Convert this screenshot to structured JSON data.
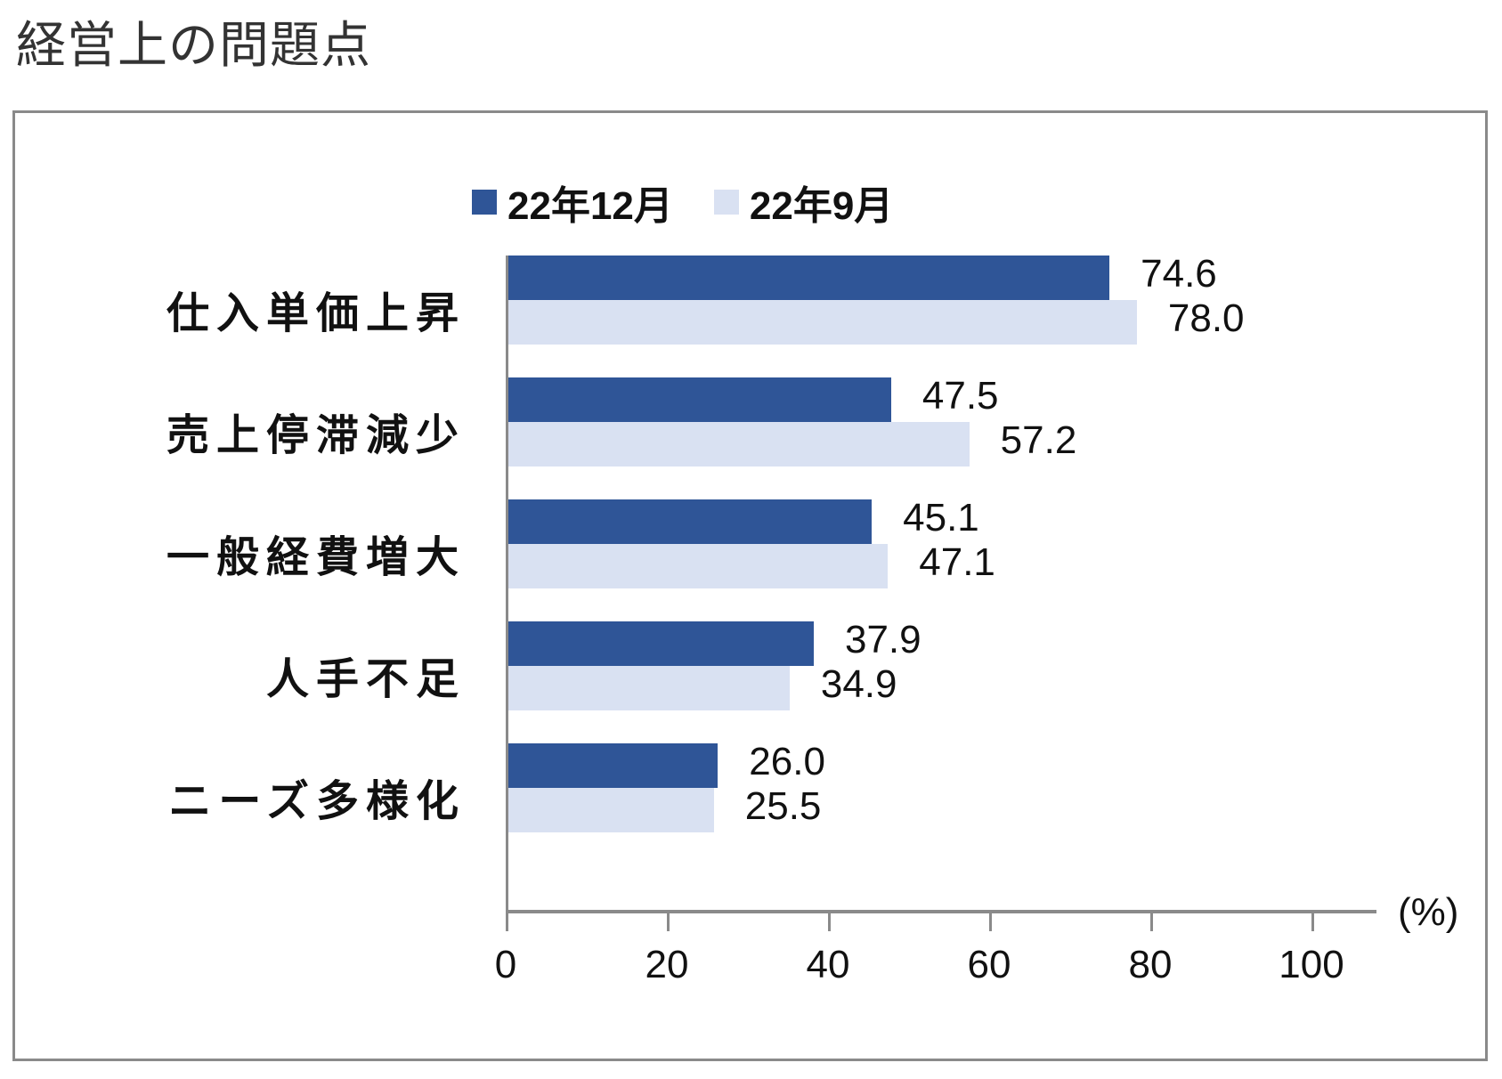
{
  "page": {
    "title": "経営上の問題点"
  },
  "colors": {
    "series1": "#2f5597",
    "series2": "#d9e1f2",
    "axis": "#8a8a8a",
    "frame": "#8a8a8a"
  },
  "legend": [
    {
      "label": "22年12月",
      "color": "#2f5597"
    },
    {
      "label": "22年9月",
      "color": "#d9e1f2"
    }
  ],
  "axis": {
    "ticks": [
      "0",
      "20",
      "40",
      "60",
      "80",
      "100"
    ],
    "unit": "(%)"
  },
  "categories": [
    {
      "label": "仕入単価上昇",
      "v1": "74.6",
      "v2": "78.0"
    },
    {
      "label": "売上停滞減少",
      "v1": "47.5",
      "v2": "57.2"
    },
    {
      "label": "一般経費増大",
      "v1": "45.1",
      "v2": "47.1"
    },
    {
      "label": "人手不足",
      "v1": "37.9",
      "v2": "34.9"
    },
    {
      "label": "ニーズ多様化",
      "v1": "26.0",
      "v2": "25.5"
    }
  ],
  "chart_data": {
    "type": "bar",
    "orientation": "horizontal",
    "title": "経営上の問題点",
    "categories": [
      "仕入単価上昇",
      "売上停滞減少",
      "一般経費増大",
      "人手不足",
      "ニーズ多様化"
    ],
    "series": [
      {
        "name": "22年12月",
        "color": "#2f5597",
        "values": [
          74.6,
          47.5,
          45.1,
          37.9,
          26.0
        ]
      },
      {
        "name": "22年9月",
        "color": "#d9e1f2",
        "values": [
          78.0,
          57.2,
          47.1,
          34.9,
          25.5
        ]
      }
    ],
    "xlabel": "(%)",
    "ylabel": "",
    "xlim": [
      0,
      100
    ],
    "xticks": [
      0,
      20,
      40,
      60,
      80,
      100
    ],
    "grid": false,
    "legend_position": "top",
    "data_labels": true
  }
}
